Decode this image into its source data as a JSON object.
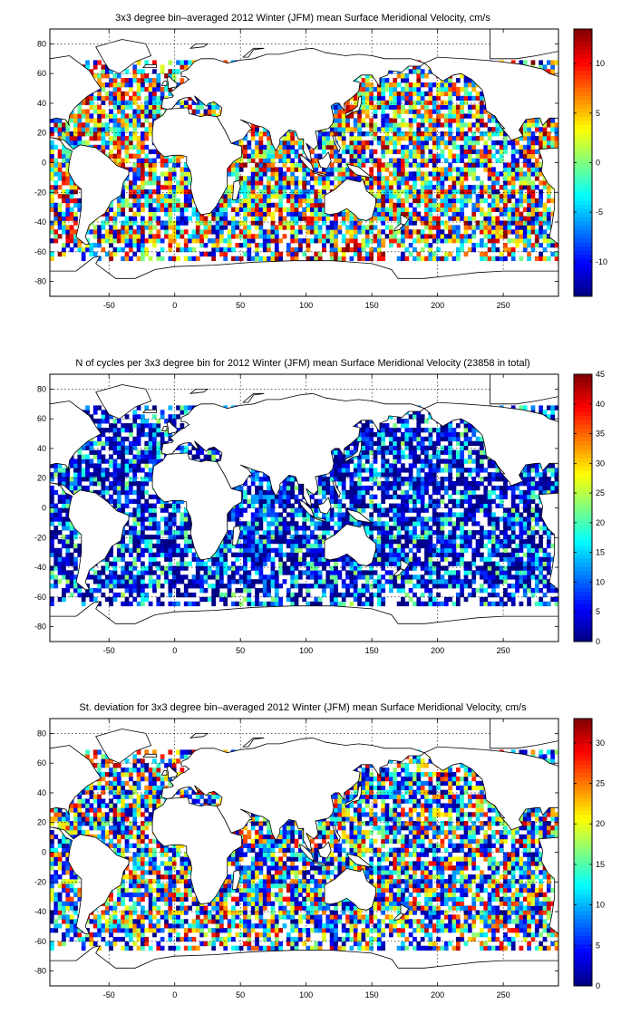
{
  "chart_data": [
    {
      "type": "heatmap",
      "title": "3x3 degree bin–averaged 2012 Winter (JFM) mean Surface Meridional Velocity, cm/s",
      "xlabel": "",
      "ylabel": "",
      "xlim": [
        -95,
        292
      ],
      "ylim": [
        -90,
        90
      ],
      "x_ticks": [
        -50,
        0,
        50,
        100,
        150,
        200,
        250
      ],
      "y_ticks": [
        -80,
        -60,
        -40,
        -20,
        0,
        20,
        40,
        60,
        80
      ],
      "grid": true,
      "colormap": "jet",
      "colorbar": {
        "range": [
          -13.5,
          13.5
        ],
        "ticks": [
          -10,
          -5,
          0,
          5,
          10
        ]
      },
      "bin_size_deg": 3
    },
    {
      "type": "heatmap",
      "title": "N of cycles per 3x3 degree bin for 2012 Winter (JFM) mean Surface Meridional Velocity (23858 in total)",
      "xlabel": "",
      "ylabel": "",
      "xlim": [
        -95,
        292
      ],
      "ylim": [
        -90,
        90
      ],
      "x_ticks": [
        -50,
        0,
        50,
        100,
        150,
        200,
        250
      ],
      "y_ticks": [
        -80,
        -60,
        -40,
        -20,
        0,
        20,
        40,
        60,
        80
      ],
      "grid": true,
      "colormap": "jet",
      "colorbar": {
        "range": [
          0,
          45
        ],
        "ticks": [
          0,
          5,
          10,
          15,
          20,
          25,
          30,
          35,
          40,
          45
        ]
      },
      "bin_size_deg": 3,
      "total_cycles": 23858
    },
    {
      "type": "heatmap",
      "title": "St. deviation for 3x3 degree bin–averaged 2012 Winter (JFM) mean Surface Meridional Velocity, cm/s",
      "xlabel": "",
      "ylabel": "",
      "xlim": [
        -95,
        292
      ],
      "ylim": [
        -90,
        90
      ],
      "x_ticks": [
        -50,
        0,
        50,
        100,
        150,
        200,
        250
      ],
      "y_ticks": [
        -80,
        -60,
        -40,
        -20,
        0,
        20,
        40,
        60,
        80
      ],
      "grid": true,
      "colormap": "jet",
      "colorbar": {
        "range": [
          0,
          33
        ],
        "ticks": [
          0,
          5,
          10,
          15,
          20,
          25,
          30
        ]
      },
      "bin_size_deg": 3
    }
  ]
}
